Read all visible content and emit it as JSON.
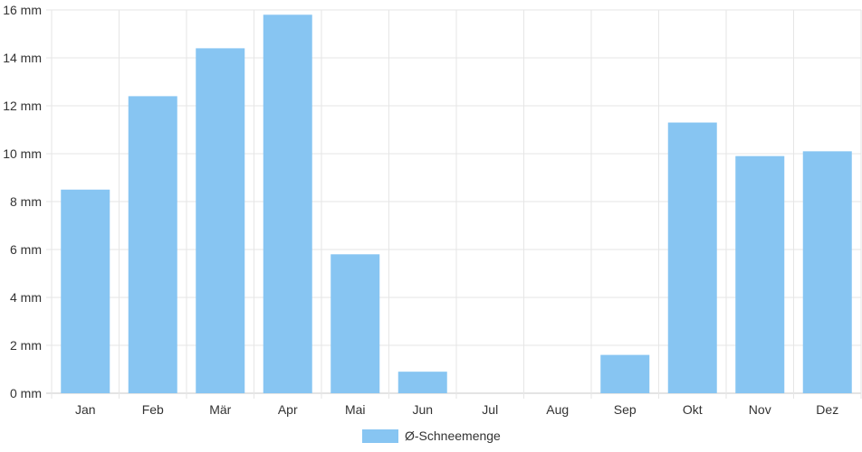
{
  "chart_data": {
    "type": "bar",
    "categories": [
      "Jan",
      "Feb",
      "Mär",
      "Apr",
      "Mai",
      "Jun",
      "Jul",
      "Aug",
      "Sep",
      "Okt",
      "Nov",
      "Dez"
    ],
    "series": [
      {
        "name": "Ø-Schneemenge",
        "values": [
          8.5,
          12.4,
          14.4,
          15.8,
          5.8,
          0.9,
          0,
          0,
          1.6,
          11.3,
          9.9,
          10.1
        ],
        "color": "#87c5f2"
      }
    ],
    "y_ticks": [
      "0 mm",
      "2 mm",
      "4 mm",
      "6 mm",
      "8 mm",
      "10 mm",
      "12 mm",
      "14 mm",
      "16 mm"
    ],
    "ylim": [
      0,
      16
    ],
    "y_step": 2,
    "grid": true,
    "legend_position": "bottom-center"
  }
}
